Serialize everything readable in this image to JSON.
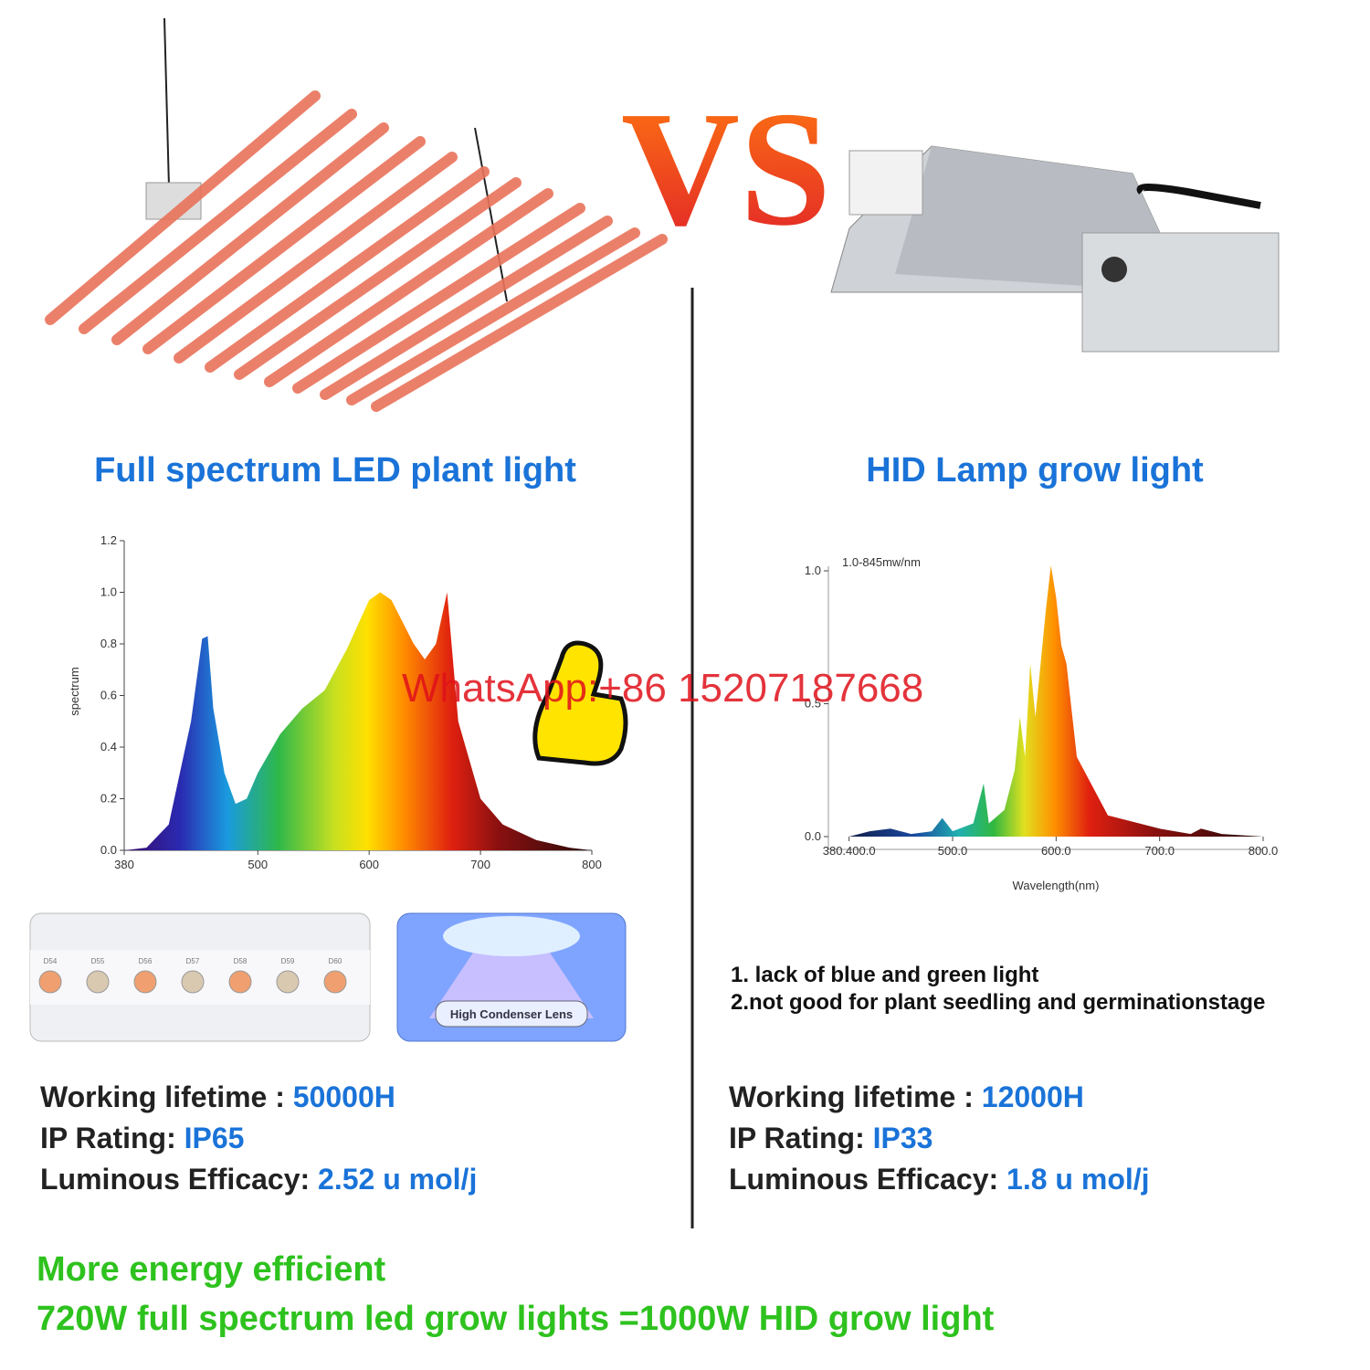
{
  "vs": "VS",
  "watermark": "WhatsApp:+86 15207187668",
  "left": {
    "title": "Full spectrum LED plant light",
    "spectrum": {
      "y_label": "spectrum",
      "xlim": [
        380,
        800
      ],
      "ylim": [
        0,
        1.2
      ],
      "xticks": [
        380,
        500,
        600,
        700,
        800
      ],
      "yticks": [
        {
          "value": 0,
          "label": "0.0"
        },
        0.2,
        0.4,
        0.6,
        0.8,
        {
          "value": 1,
          "label": "1.0"
        },
        1.2
      ],
      "x": [
        380,
        400,
        420,
        440,
        450,
        455,
        460,
        470,
        480,
        490,
        500,
        520,
        540,
        560,
        580,
        600,
        610,
        620,
        640,
        650,
        660,
        670,
        680,
        700,
        720,
        750,
        780,
        800
      ],
      "values": [
        0,
        0.01,
        0.1,
        0.5,
        0.82,
        0.83,
        0.55,
        0.3,
        0.18,
        0.2,
        0.3,
        0.45,
        0.55,
        0.62,
        0.78,
        0.97,
        1.0,
        0.97,
        0.8,
        0.74,
        0.8,
        1.0,
        0.5,
        0.2,
        0.1,
        0.04,
        0.01,
        0
      ]
    },
    "led_labels": [
      "D54",
      "D55",
      "D56",
      "D57",
      "D58",
      "D59",
      "D60"
    ],
    "lens_label": "High Condenser Lens",
    "specs": [
      {
        "label": "Working lifetime :",
        "value": "50000H"
      },
      {
        "label": "IP Rating:",
        "value": "IP65"
      },
      {
        "label": "Luminous Efficacy:",
        "value": "2.52 u mol/j"
      }
    ]
  },
  "right": {
    "title": "HID Lamp grow light",
    "spectrum": {
      "note": "1.0-845mw/nm",
      "x_label": "Wavelength(nm)",
      "xlim": [
        380,
        800
      ],
      "ylim": [
        0,
        1
      ],
      "xticks": [
        {
          "value": 400,
          "label": "380.400.0"
        },
        {
          "value": 500,
          "label": "500.0"
        },
        {
          "value": 600,
          "label": "600.0"
        },
        {
          "value": 700,
          "label": "700.0"
        },
        {
          "value": 800,
          "label": "800.0"
        }
      ],
      "yticks": [
        {
          "value": 0,
          "label": "0.0"
        },
        0.5,
        {
          "value": 1,
          "label": "1.0"
        }
      ],
      "x": [
        400,
        420,
        440,
        460,
        480,
        490,
        500,
        520,
        530,
        535,
        550,
        560,
        565,
        570,
        575,
        580,
        590,
        595,
        600,
        605,
        610,
        620,
        650,
        700,
        730,
        740,
        760,
        800
      ],
      "values": [
        0,
        0.02,
        0.03,
        0.01,
        0.02,
        0.07,
        0.02,
        0.05,
        0.2,
        0.05,
        0.1,
        0.25,
        0.45,
        0.3,
        0.65,
        0.45,
        0.85,
        1.02,
        0.9,
        0.72,
        0.65,
        0.3,
        0.08,
        0.03,
        0.01,
        0.03,
        0.01,
        0
      ]
    },
    "notes": [
      "1. lack of blue and green light",
      "2.not good for plant seedling and germinationstage"
    ],
    "specs": [
      {
        "label": "Working lifetime :",
        "value": "12000H"
      },
      {
        "label": "IP Rating:",
        "value": "IP33"
      },
      {
        "label": "Luminous Efficacy:",
        "value": "1.8 u mol/j"
      }
    ]
  },
  "footer": [
    "More energy efficient",
    "720W full spectrum led grow lights =1000W HID grow light"
  ]
}
